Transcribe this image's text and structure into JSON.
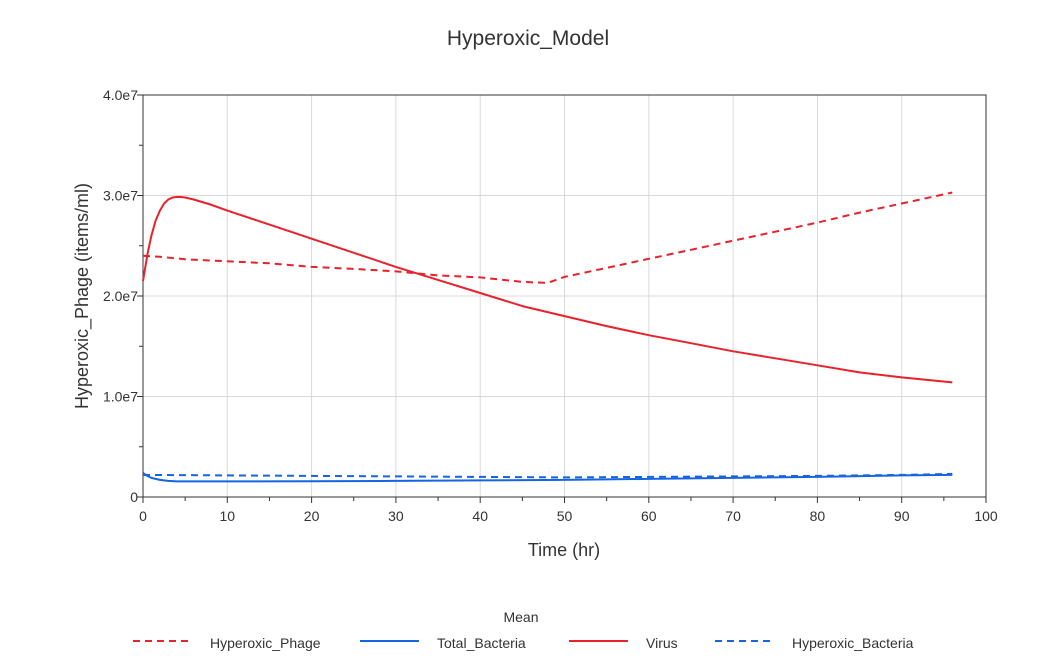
{
  "chart_data": {
    "type": "line",
    "title": "Hyperoxic_Model",
    "xlabel": "Time (hr)",
    "ylabel": "Hyperoxic_Phage (items/ml)",
    "xlim": [
      0,
      100
    ],
    "ylim": [
      0,
      40000000
    ],
    "x_ticks": [
      0,
      10,
      20,
      30,
      40,
      50,
      60,
      70,
      80,
      90,
      100
    ],
    "x_tick_labels": [
      "0",
      "10",
      "20",
      "30",
      "40",
      "50",
      "60",
      "70",
      "80",
      "90",
      "100"
    ],
    "y_ticks": [
      0,
      10000000,
      20000000,
      30000000,
      40000000
    ],
    "y_tick_labels": [
      "0",
      "1.0e7",
      "2.0e7",
      "3.0e7",
      "4.0e7"
    ],
    "grid": true,
    "legend": {
      "title": "Mean",
      "position": "bottom"
    },
    "series": [
      {
        "name": "Hyperoxic_Phage",
        "color": "#e8212b",
        "dash": "dashed",
        "x": [
          0,
          2,
          5,
          10,
          15,
          20,
          25,
          30,
          35,
          40,
          45,
          48,
          50,
          55,
          60,
          65,
          70,
          75,
          80,
          85,
          90,
          96
        ],
        "y": [
          24000000,
          23900000,
          23650000,
          23450000,
          23250000,
          22900000,
          22700000,
          22450000,
          22050000,
          21850000,
          21400000,
          21300000,
          21900000,
          22800000,
          23700000,
          24600000,
          25500000,
          26400000,
          27300000,
          28300000,
          29200000,
          30300000
        ]
      },
      {
        "name": "Total_Bacteria",
        "color": "#1565e3",
        "dash": "solid",
        "x": [
          0,
          0.5,
          1,
          2,
          3,
          4,
          10,
          20,
          30,
          40,
          50,
          60,
          70,
          80,
          90,
          96
        ],
        "y": [
          2400000,
          2100000,
          1900000,
          1700000,
          1600000,
          1550000,
          1550000,
          1560000,
          1600000,
          1650000,
          1700000,
          1800000,
          1900000,
          2000000,
          2150000,
          2200000
        ]
      },
      {
        "name": "Virus",
        "color": "#e8212b",
        "dash": "solid",
        "x": [
          0,
          0.3,
          0.6,
          1,
          1.5,
          2,
          2.5,
          3,
          3.5,
          4,
          4.5,
          5,
          6,
          8,
          10,
          15,
          20,
          25,
          30,
          35,
          40,
          45,
          50,
          55,
          60,
          65,
          70,
          75,
          80,
          85,
          90,
          96
        ],
        "y": [
          21500000,
          23000000,
          24500000,
          26000000,
          27500000,
          28500000,
          29200000,
          29600000,
          29800000,
          29850000,
          29850000,
          29800000,
          29600000,
          29100000,
          28500000,
          27100000,
          25700000,
          24300000,
          22900000,
          21600000,
          20300000,
          19000000,
          18000000,
          17000000,
          16100000,
          15300000,
          14500000,
          13800000,
          13100000,
          12400000,
          11900000,
          11400000
        ]
      },
      {
        "name": "Hyperoxic_Bacteria",
        "color": "#1565e3",
        "dash": "dashed",
        "x": [
          0,
          10,
          20,
          30,
          40,
          50,
          60,
          70,
          80,
          90,
          96
        ],
        "y": [
          2200000,
          2150000,
          2100000,
          2050000,
          2000000,
          1950000,
          2000000,
          2050000,
          2100000,
          2200000,
          2300000
        ]
      }
    ]
  }
}
